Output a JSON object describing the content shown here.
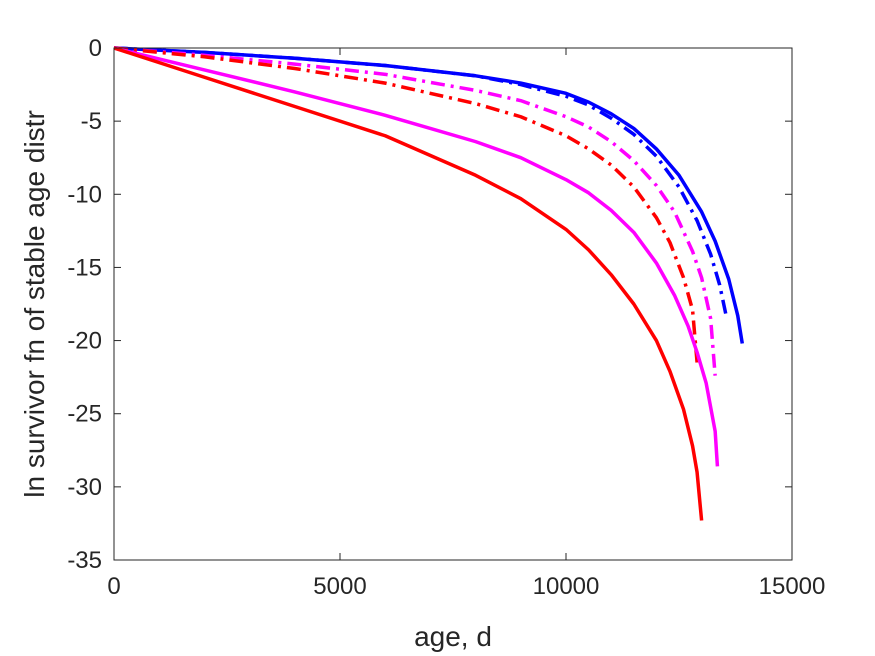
{
  "chart_data": {
    "type": "line",
    "title": "",
    "xlabel": "age, d",
    "ylabel": "ln survivor fn of stable age distr",
    "xlim": [
      0,
      15000
    ],
    "ylim": [
      -35,
      0
    ],
    "grid": false,
    "legend": "none",
    "x_ticks": [
      0,
      5000,
      10000,
      15000
    ],
    "x_tick_labels": [
      "0",
      "5000",
      "10000",
      "15000"
    ],
    "y_ticks": [
      0,
      -5,
      -10,
      -15,
      -20,
      -25,
      -30,
      -35
    ],
    "y_tick_labels": [
      "0",
      "-5",
      "-10",
      "-15",
      "-20",
      "-25",
      "-30",
      "-35"
    ],
    "series": [
      {
        "color": "#0000ff",
        "line_style": "solid",
        "x": [
          0,
          2000,
          4000,
          6000,
          8000,
          9000,
          10000,
          10500,
          11000,
          11500,
          12000,
          12500,
          13000,
          13300,
          13600,
          13800,
          13900
        ],
        "y": [
          0,
          -0.3,
          -0.7,
          -1.2,
          -1.9,
          -2.4,
          -3.1,
          -3.7,
          -4.5,
          -5.5,
          -6.9,
          -8.7,
          -11.2,
          -13.2,
          -15.8,
          -18.3,
          -20.2
        ]
      },
      {
        "color": "#0000ff",
        "line_style": "dashdot",
        "x": [
          0,
          2000,
          4000,
          6000,
          8000,
          9000,
          10000,
          10500,
          11000,
          11500,
          12000,
          12500,
          12900,
          13200,
          13400,
          13550
        ],
        "y": [
          0,
          -0.3,
          -0.7,
          -1.2,
          -1.9,
          -2.5,
          -3.3,
          -3.9,
          -4.8,
          -5.9,
          -7.4,
          -9.5,
          -11.8,
          -14.1,
          -16.2,
          -18.4
        ]
      },
      {
        "color": "#ff00ff",
        "line_style": "dashdot",
        "x": [
          0,
          2000,
          4000,
          6000,
          8000,
          9000,
          10000,
          10500,
          11000,
          11500,
          12000,
          12400,
          12800,
          13000,
          13200,
          13300
        ],
        "y": [
          0,
          -0.5,
          -1.1,
          -1.8,
          -2.9,
          -3.6,
          -4.7,
          -5.4,
          -6.4,
          -7.7,
          -9.4,
          -11.2,
          -13.9,
          -15.7,
          -18.5,
          -22.4
        ]
      },
      {
        "color": "#ff0000",
        "line_style": "dashdot",
        "x": [
          0,
          2000,
          4000,
          6000,
          8000,
          9000,
          10000,
          10500,
          11000,
          11500,
          12000,
          12300,
          12600,
          12800,
          12900
        ],
        "y": [
          0,
          -0.6,
          -1.4,
          -2.4,
          -3.8,
          -4.7,
          -6.0,
          -6.9,
          -8.0,
          -9.5,
          -11.6,
          -13.3,
          -15.7,
          -17.9,
          -21.5
        ]
      },
      {
        "color": "#ff00ff",
        "line_style": "solid",
        "x": [
          0,
          2000,
          4000,
          6000,
          8000,
          9000,
          10000,
          10500,
          11000,
          11500,
          12000,
          12400,
          12700,
          12900,
          13100,
          13300,
          13350
        ],
        "y": [
          0,
          -1.5,
          -3.0,
          -4.6,
          -6.4,
          -7.5,
          -9.0,
          -9.9,
          -11.1,
          -12.6,
          -14.7,
          -16.9,
          -19.0,
          -20.8,
          -22.9,
          -26.2,
          -28.6
        ]
      },
      {
        "color": "#ff0000",
        "line_style": "solid",
        "x": [
          0,
          2000,
          4000,
          6000,
          8000,
          9000,
          10000,
          10500,
          11000,
          11500,
          12000,
          12300,
          12600,
          12800,
          12900,
          13000
        ],
        "y": [
          0,
          -2.0,
          -4.0,
          -6.0,
          -8.7,
          -10.3,
          -12.4,
          -13.8,
          -15.5,
          -17.5,
          -20.0,
          -22.1,
          -24.7,
          -27.2,
          -29.0,
          -32.3
        ]
      }
    ]
  }
}
